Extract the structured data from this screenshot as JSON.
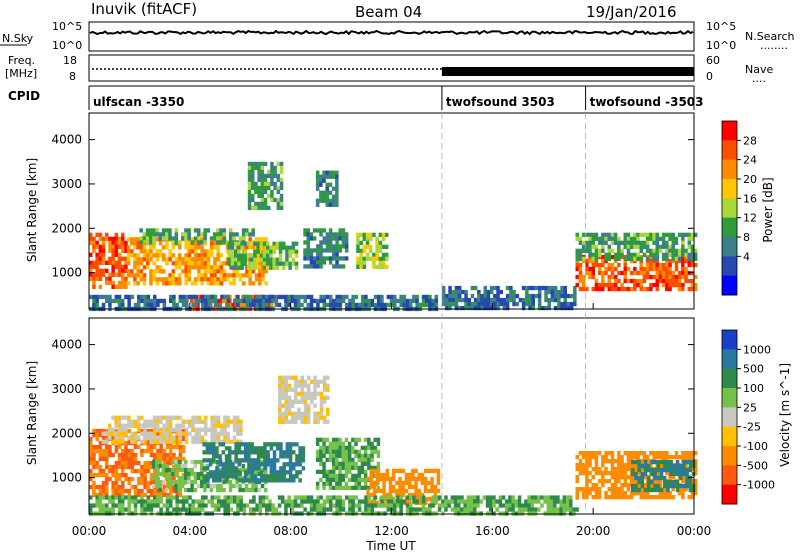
{
  "header": {
    "station": "Inuvik (fitACF)",
    "beam": "Beam 04",
    "date": "19/Jan/2016"
  },
  "noise_panel": {
    "left_label": "N.Sky",
    "left_ticks": [
      "10^5",
      "10^0"
    ],
    "right_ticks": [
      "10^5",
      "10^0"
    ],
    "right_label": "N.Search",
    "right_legend": "........"
  },
  "freq_panel": {
    "left_label_1": "Freq.",
    "left_label_2": "[MHz]",
    "left_ticks": [
      "18",
      "8"
    ],
    "right_ticks": [
      "60",
      "0"
    ],
    "right_label": "Nave",
    "right_legend": "...."
  },
  "cpid_panel": {
    "label": "CPID",
    "segments": [
      {
        "name": "ulfscan -3350",
        "start_hour": 0,
        "end_hour": 14
      },
      {
        "name": "twofsound 3503",
        "start_hour": 14,
        "end_hour": 19.7
      },
      {
        "name": "twofsound -3503",
        "start_hour": 19.7,
        "end_hour": 24
      }
    ]
  },
  "x_axis": {
    "label": "Time UT",
    "tick_labels": [
      "00:00",
      "04:00",
      "08:00",
      "12:00",
      "16:00",
      "20:00",
      "00:00"
    ],
    "range_hours": [
      0,
      24
    ]
  },
  "y_axis": {
    "label": "Slant Range [km]",
    "tick_labels": [
      "1000",
      "2000",
      "3000",
      "4000"
    ],
    "ticks_km": [
      1000,
      2000,
      3000,
      4000
    ],
    "range_km": [
      180,
      4600
    ]
  },
  "power_colorbar": {
    "label": "Power [dB]",
    "tick_labels": [
      "28",
      "24",
      "20",
      "16",
      "12",
      "8",
      "4"
    ],
    "colors": [
      "#ff0000",
      "#ff4d00",
      "#ff8c00",
      "#ffc800",
      "#a8d83a",
      "#2f9c3c",
      "#3c7e8a",
      "#2549b0",
      "#0000ff"
    ]
  },
  "velocity_colorbar": {
    "label": "Velocity [m s^-1]",
    "tick_labels": [
      "1000",
      "500",
      "100",
      "25",
      "-25",
      "-100",
      "-500",
      "-1000"
    ],
    "colors": [
      "#1a3fc8",
      "#2a7aa0",
      "#2f8a4a",
      "#74c24a",
      "#c8c8c0",
      "#ffc000",
      "#ff8c00",
      "#ff5a10",
      "#ff0000"
    ]
  },
  "chart_data": [
    {
      "type": "heatmap",
      "title": "Power",
      "xlabel": "Time UT",
      "ylabel": "Slant Range [km]",
      "xlim": [
        0,
        24
      ],
      "ylim": [
        180,
        4600
      ],
      "color_label": "Power [dB]",
      "patches": [
        {
          "t": [
            0.0,
            1.5
          ],
          "r": [
            700,
            1900
          ],
          "v": 26
        },
        {
          "t": [
            1.5,
            7.0
          ],
          "r": [
            800,
            1800
          ],
          "v": 22
        },
        {
          "t": [
            2.0,
            6.5
          ],
          "r": [
            1700,
            2000
          ],
          "v": 12
        },
        {
          "t": [
            4.0,
            7.2
          ],
          "r": [
            200,
            500
          ],
          "v": 26
        },
        {
          "t": [
            0.0,
            13.8
          ],
          "r": [
            200,
            500
          ],
          "v": 8
        },
        {
          "t": [
            5.5,
            8.2
          ],
          "r": [
            1100,
            1700
          ],
          "v": 14
        },
        {
          "t": [
            6.3,
            7.6
          ],
          "r": [
            2500,
            3500
          ],
          "v": 12
        },
        {
          "t": [
            8.5,
            10.2
          ],
          "r": [
            1100,
            2000
          ],
          "v": 10
        },
        {
          "t": [
            10.6,
            11.8
          ],
          "r": [
            1100,
            1900
          ],
          "v": 16
        },
        {
          "t": [
            9.0,
            9.8
          ],
          "r": [
            2500,
            3300
          ],
          "v": 10
        },
        {
          "t": [
            14.0,
            19.3
          ],
          "r": [
            200,
            700
          ],
          "v": 8
        },
        {
          "t": [
            19.3,
            24.0
          ],
          "r": [
            600,
            1400
          ],
          "v": 26
        },
        {
          "t": [
            19.3,
            24.0
          ],
          "r": [
            1300,
            1900
          ],
          "v": 12
        }
      ]
    },
    {
      "type": "heatmap",
      "title": "Velocity",
      "xlabel": "Time UT",
      "ylabel": "Slant Range [km]",
      "xlim": [
        0,
        24
      ],
      "ylim": [
        180,
        4600
      ],
      "color_label": "Velocity [m s^-1]",
      "patches": [
        {
          "t": [
            0.0,
            3.8
          ],
          "r": [
            600,
            2100
          ],
          "v": -300
        },
        {
          "t": [
            0.5,
            6.0
          ],
          "r": [
            1800,
            2400
          ],
          "v": -10
        },
        {
          "t": [
            2.5,
            7.0
          ],
          "r": [
            700,
            1400
          ],
          "v": 50
        },
        {
          "t": [
            4.5,
            8.5
          ],
          "r": [
            900,
            1800
          ],
          "v": 300
        },
        {
          "t": [
            7.5,
            9.5
          ],
          "r": [
            2300,
            3300
          ],
          "v": -10
        },
        {
          "t": [
            9.0,
            11.5
          ],
          "r": [
            800,
            1900
          ],
          "v": 60
        },
        {
          "t": [
            11.0,
            13.8
          ],
          "r": [
            400,
            1200
          ],
          "v": -200
        },
        {
          "t": [
            0.0,
            19.3
          ],
          "r": [
            200,
            600
          ],
          "v": 60
        },
        {
          "t": [
            19.3,
            24.0
          ],
          "r": [
            600,
            1600
          ],
          "v": -150
        },
        {
          "t": [
            21.5,
            24.0
          ],
          "r": [
            700,
            1400
          ],
          "v": 300
        }
      ]
    }
  ]
}
